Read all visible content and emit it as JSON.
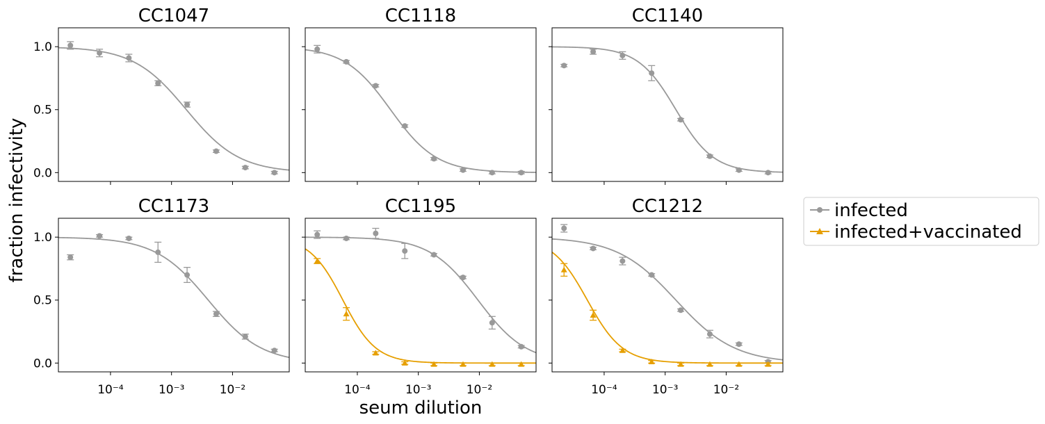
{
  "figure": {
    "ylabel": "fraction infectivity",
    "xlabel": "seum dilution",
    "legend": {
      "placement": "right",
      "entries": [
        {
          "name": "infected",
          "color": "#999999",
          "marker": "circle"
        },
        {
          "name": "infected+vaccinated",
          "color": "#E69F00",
          "marker": "triangle"
        }
      ]
    }
  },
  "chart_data": [
    {
      "type": "line",
      "title": "CC1047",
      "xscale": "log",
      "xlim": [
        1.4e-05,
        0.085
      ],
      "ylim": [
        -0.07,
        1.15
      ],
      "x_ticks": [],
      "y_ticks": [
        "0.0",
        "0.5",
        "1.0"
      ],
      "series": [
        {
          "name": "infected",
          "color": "#999999",
          "marker": "circle",
          "x": [
            2.2e-05,
            6.6e-05,
            0.0002,
            0.0006,
            0.0018,
            0.0054,
            0.0162,
            0.0486
          ],
          "y": [
            1.01,
            0.95,
            0.91,
            0.71,
            0.54,
            0.17,
            0.04,
            0.0
          ],
          "err": [
            0.03,
            0.03,
            0.03,
            0.02,
            0.02,
            0.01,
            0.01,
            0.01
          ],
          "fit": {
            "ic50": 0.00175,
            "hill": 1.0
          }
        }
      ]
    },
    {
      "type": "line",
      "title": "CC1118",
      "xscale": "log",
      "xlim": [
        1.4e-05,
        0.085
      ],
      "ylim": [
        -0.07,
        1.15
      ],
      "x_ticks": [],
      "y_ticks": [],
      "series": [
        {
          "name": "infected",
          "color": "#999999",
          "marker": "circle",
          "x": [
            2.2e-05,
            6.6e-05,
            0.0002,
            0.0006,
            0.0018,
            0.0054,
            0.0162,
            0.0486
          ],
          "y": [
            0.98,
            0.88,
            0.69,
            0.37,
            0.11,
            0.02,
            0.0,
            0.0
          ],
          "err": [
            0.03,
            0.01,
            0.01,
            0.01,
            0.01,
            0.01,
            0.01,
            0.01
          ],
          "fit": {
            "ic50": 0.00035,
            "hill": 1.15
          }
        }
      ]
    },
    {
      "type": "line",
      "title": "CC1140",
      "xscale": "log",
      "xlim": [
        1.4e-05,
        0.085
      ],
      "ylim": [
        -0.07,
        1.15
      ],
      "x_ticks": [],
      "y_ticks": [],
      "series": [
        {
          "name": "infected",
          "color": "#999999",
          "marker": "circle",
          "x": [
            2.2e-05,
            6.6e-05,
            0.0002,
            0.0006,
            0.0018,
            0.0054,
            0.0162,
            0.0486
          ],
          "y": [
            0.85,
            0.96,
            0.93,
            0.79,
            0.42,
            0.13,
            0.02,
            0.0
          ],
          "err": [
            0.01,
            0.02,
            0.03,
            0.06,
            0.01,
            0.01,
            0.01,
            0.01
          ],
          "fit": {
            "ic50": 0.0015,
            "hill": 1.4
          }
        }
      ]
    },
    {
      "type": "line",
      "title": "CC1173",
      "xscale": "log",
      "xlim": [
        1.4e-05,
        0.085
      ],
      "ylim": [
        -0.07,
        1.15
      ],
      "x_ticks": [
        "10⁻⁴",
        "10⁻³",
        "10⁻²"
      ],
      "y_ticks": [
        "0.0",
        "0.5",
        "1.0"
      ],
      "series": [
        {
          "name": "infected",
          "color": "#999999",
          "marker": "circle",
          "x": [
            2.2e-05,
            6.6e-05,
            0.0002,
            0.0006,
            0.0018,
            0.0054,
            0.0162,
            0.0486
          ],
          "y": [
            0.84,
            1.01,
            0.99,
            0.88,
            0.7,
            0.39,
            0.21,
            0.1
          ],
          "err": [
            0.02,
            0.01,
            0.01,
            0.08,
            0.06,
            0.02,
            0.02,
            0.01
          ],
          "fit": {
            "ic50": 0.004,
            "hill": 1.0
          }
        }
      ]
    },
    {
      "type": "line",
      "title": "CC1195",
      "xscale": "log",
      "xlim": [
        1.4e-05,
        0.085
      ],
      "ylim": [
        -0.07,
        1.15
      ],
      "x_ticks": [
        "10⁻⁴",
        "10⁻³",
        "10⁻²"
      ],
      "y_ticks": [],
      "series": [
        {
          "name": "infected",
          "color": "#999999",
          "marker": "circle",
          "x": [
            2.2e-05,
            6.6e-05,
            0.0002,
            0.0006,
            0.0018,
            0.0054,
            0.0162,
            0.0486
          ],
          "y": [
            1.02,
            0.99,
            1.03,
            0.89,
            0.86,
            0.68,
            0.32,
            0.13
          ],
          "err": [
            0.03,
            0.01,
            0.04,
            0.06,
            0.01,
            0.01,
            0.05,
            0.01
          ],
          "fit": {
            "ic50": 0.0095,
            "hill": 1.1
          }
        },
        {
          "name": "infected+vaccinated",
          "color": "#E69F00",
          "marker": "triangle",
          "x": [
            2.2e-05,
            6.6e-05,
            0.0002,
            0.0006,
            0.0018,
            0.0054,
            0.0162,
            0.0486
          ],
          "y": [
            0.81,
            0.39,
            0.08,
            0.0,
            -0.01,
            -0.01,
            -0.01,
            -0.01
          ],
          "err": [
            0.02,
            0.05,
            0.01,
            0.01,
            0.01,
            0.01,
            0.01,
            0.01
          ],
          "fit": {
            "ic50": 5.8e-05,
            "hill": 1.6
          }
        }
      ]
    },
    {
      "type": "line",
      "title": "CC1212",
      "xscale": "log",
      "xlim": [
        1.4e-05,
        0.085
      ],
      "ylim": [
        -0.07,
        1.15
      ],
      "x_ticks": [
        "10⁻⁴",
        "10⁻³",
        "10⁻²"
      ],
      "y_ticks": [],
      "series": [
        {
          "name": "infected",
          "color": "#999999",
          "marker": "circle",
          "x": [
            2.2e-05,
            6.6e-05,
            0.0002,
            0.0006,
            0.0018,
            0.0054,
            0.0162,
            0.0486
          ],
          "y": [
            1.07,
            0.91,
            0.81,
            0.7,
            0.42,
            0.23,
            0.15,
            0.01
          ],
          "err": [
            0.03,
            0.01,
            0.03,
            0.01,
            0.01,
            0.03,
            0.01,
            0.01
          ],
          "fit": {
            "ic50": 0.0015,
            "hill": 0.9
          }
        },
        {
          "name": "infected+vaccinated",
          "color": "#E69F00",
          "marker": "triangle",
          "x": [
            2.2e-05,
            6.6e-05,
            0.0002,
            0.0006,
            0.0018,
            0.0054,
            0.0162,
            0.0486
          ],
          "y": [
            0.74,
            0.38,
            0.1,
            0.01,
            -0.01,
            -0.01,
            -0.01,
            -0.01
          ],
          "err": [
            0.05,
            0.04,
            0.01,
            0.01,
            0.01,
            0.01,
            0.01,
            0.01
          ],
          "fit": {
            "ic50": 5.3e-05,
            "hill": 1.5
          }
        }
      ]
    }
  ]
}
